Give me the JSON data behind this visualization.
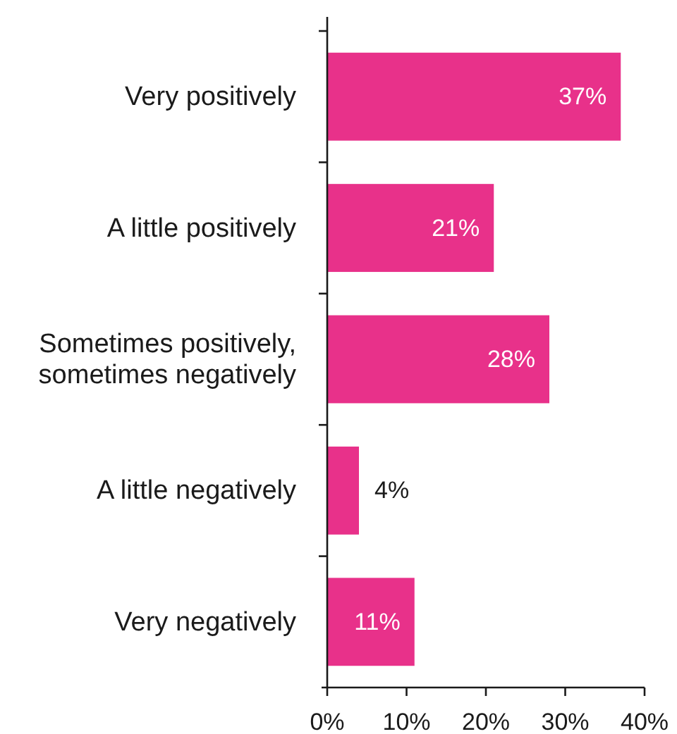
{
  "chart_data": {
    "type": "bar",
    "orientation": "horizontal",
    "categories": [
      "Very positively",
      "A little positively",
      "Sometimes positively, sometimes negatively",
      "A little negatively",
      "Very negatively"
    ],
    "values": [
      37,
      21,
      28,
      4,
      11
    ],
    "value_labels": [
      "37%",
      "21%",
      "28%",
      "4%",
      "11%"
    ],
    "color": "#e8318a",
    "xlim": [
      0,
      40
    ],
    "xticks": [
      {
        "value": 0,
        "label": "0%"
      },
      {
        "value": 10,
        "label": "10%"
      },
      {
        "value": 20,
        "label": "20%"
      },
      {
        "value": 30,
        "label": "30%"
      },
      {
        "value": 40,
        "label": "40%"
      }
    ]
  }
}
